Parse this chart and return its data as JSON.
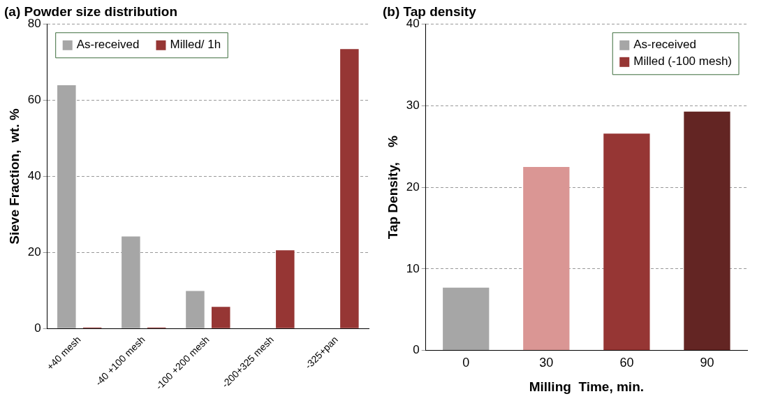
{
  "chart_data": [
    {
      "type": "bar",
      "title": "(a) Powder size distribution",
      "ylabel": "Sieve Fraction,  wt. %",
      "categories": [
        "+40 mesh",
        "-40 +100 mesh",
        "-100 +200 mesh",
        "-200+325 mesh",
        "-325+pan"
      ],
      "series": [
        {
          "name": "As-received",
          "color": "#a6a6a6",
          "values": [
            64,
            24.2,
            9.9,
            0,
            0
          ]
        },
        {
          "name": "Milled/ 1h",
          "color": "#963634",
          "values": [
            0.3,
            0.3,
            5.7,
            20.6,
            73.5
          ]
        }
      ],
      "ylim": [
        0,
        80
      ],
      "yticks": [
        0,
        20,
        40,
        60,
        80
      ],
      "grid": "y",
      "legend": "top"
    },
    {
      "type": "bar",
      "title": "(b) Tap density",
      "xlabel": "Milling  Time, min.",
      "ylabel": "Tap Density,    %",
      "categories": [
        "0",
        "30",
        "60",
        "90"
      ],
      "series": [
        {
          "name": "As-received",
          "color": "#a6a6a6",
          "values": [
            7.7,
            null,
            null,
            null
          ]
        },
        {
          "name": "Milled (-100 mesh)",
          "color": "#963634",
          "colors": [
            null,
            "#da9694",
            "#963634",
            "#632523"
          ],
          "values": [
            null,
            22.5,
            26.6,
            29.3
          ]
        }
      ],
      "ylim": [
        0,
        40
      ],
      "yticks": [
        0,
        10,
        20,
        30,
        40
      ],
      "grid": "y",
      "legend": "top right"
    }
  ]
}
